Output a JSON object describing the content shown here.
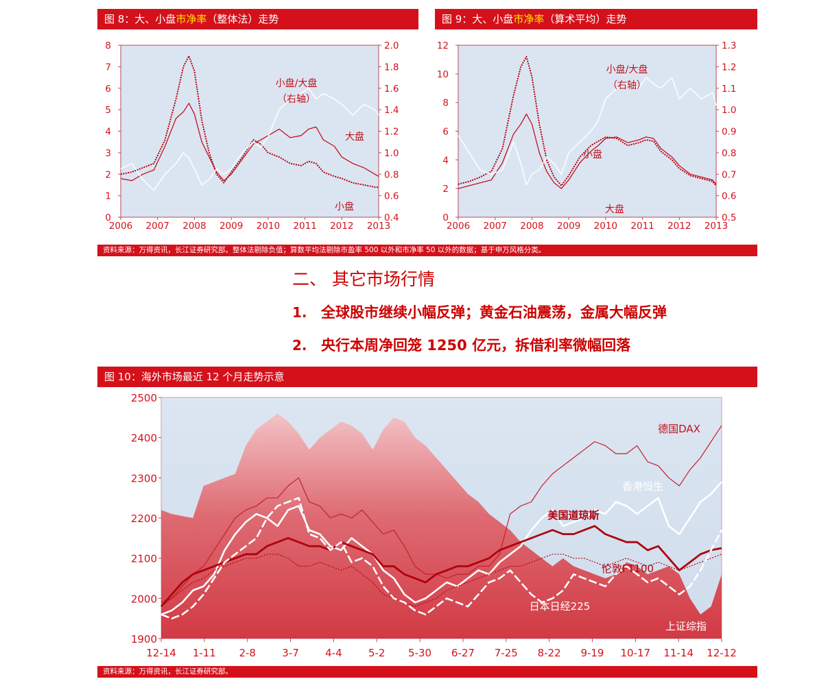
{
  "fig8": {
    "title_pre": "图 8：大、小盘",
    "title_hl": "市净率",
    "title_post": "（整体法）走势"
  },
  "fig9": {
    "title_pre": "图 9：大、小盘",
    "title_hl": "市净率",
    "title_post": "（算术平均）走势"
  },
  "source_top": "资料来源：万得资讯，长江证券研究部。整体法剔除负值；算数平均法剔除市盈率 500 以外和市净率 50 以外的数据；基于申万风格分类。",
  "section": {
    "heading": "二、 其它市场行情",
    "item1_num": "1.",
    "item1_text": "全球股市继续小幅反弹；黄金石油震荡，金属大幅反弹",
    "item2_num": "2.",
    "item2_text": "央行本周净回笼 1250 亿元，拆借利率微幅回落"
  },
  "fig10": {
    "title": "图 10：海外市场最近 12 个月走势示意"
  },
  "source_bottom": "资料来源：万得资讯，长江证券研究部。",
  "colors": {
    "brand_red": "#d4111b",
    "highlight_yellow": "#ffe600",
    "plot_bg": "#dbe5f1",
    "line_dark_red": "#c0000c",
    "line_mid_red": "#d9383f",
    "line_white": "#ffffff"
  },
  "chart_data": [
    {
      "id": "fig8",
      "type": "line",
      "title": "图 8：大、小盘市净率（整体法）走势",
      "x_ticks": [
        "2006",
        "2007",
        "2008",
        "2009",
        "2010",
        "2011",
        "2012",
        "2013"
      ],
      "xlim": [
        2006,
        2013
      ],
      "y_left_ticks": [
        "0",
        "1",
        "2",
        "3",
        "4",
        "5",
        "6",
        "7",
        "8"
      ],
      "ylim_left": [
        0,
        8
      ],
      "y_right_ticks": [
        "0.4",
        "0.6",
        "0.8",
        "1.0",
        "1.2",
        "1.4",
        "1.6",
        "1.8",
        "2.0"
      ],
      "ylim_right": [
        0.4,
        2.0
      ],
      "annotations": [
        "小盘/大盘",
        "（右轴）",
        "大盘",
        "小盘"
      ],
      "series": [
        {
          "name": "大盘",
          "axis": "left",
          "style": "solid",
          "x": [
            2006.0,
            2006.3,
            2006.6,
            2006.9,
            2007.2,
            2007.5,
            2007.7,
            2007.85,
            2008.0,
            2008.2,
            2008.4,
            2008.6,
            2008.8,
            2009.0,
            2009.3,
            2009.6,
            2009.8,
            2010.0,
            2010.3,
            2010.6,
            2010.9,
            2011.1,
            2011.3,
            2011.5,
            2011.8,
            2012.0,
            2012.3,
            2012.6,
            2012.9,
            2013.0
          ],
          "y": [
            1.8,
            1.7,
            2.0,
            2.2,
            3.3,
            4.6,
            4.9,
            5.3,
            4.8,
            3.5,
            2.8,
            2.1,
            1.7,
            2.0,
            2.7,
            3.4,
            3.6,
            3.8,
            4.1,
            3.7,
            3.8,
            4.1,
            4.2,
            3.6,
            3.3,
            2.8,
            2.5,
            2.3,
            2.0,
            1.9
          ]
        },
        {
          "name": "小盘",
          "axis": "left",
          "style": "dotted",
          "x": [
            2006.0,
            2006.3,
            2006.6,
            2006.9,
            2007.2,
            2007.5,
            2007.7,
            2007.85,
            2008.0,
            2008.2,
            2008.4,
            2008.6,
            2008.8,
            2009.0,
            2009.3,
            2009.6,
            2009.8,
            2010.0,
            2010.3,
            2010.6,
            2010.9,
            2011.1,
            2011.3,
            2011.5,
            2011.8,
            2012.0,
            2012.3,
            2012.6,
            2012.9,
            2013.0
          ],
          "y": [
            2.0,
            2.1,
            2.3,
            2.5,
            3.6,
            5.5,
            7.0,
            7.5,
            6.8,
            4.5,
            3.0,
            2.0,
            1.6,
            2.1,
            2.8,
            3.6,
            3.4,
            3.0,
            2.8,
            2.5,
            2.4,
            2.6,
            2.5,
            2.1,
            1.9,
            1.8,
            1.6,
            1.5,
            1.4,
            1.4
          ]
        },
        {
          "name": "小盘/大盘",
          "axis": "right",
          "style": "solid",
          "x": [
            2006.0,
            2006.3,
            2006.6,
            2006.9,
            2007.2,
            2007.5,
            2007.7,
            2007.85,
            2008.0,
            2008.2,
            2008.4,
            2008.6,
            2008.8,
            2009.0,
            2009.3,
            2009.6,
            2009.8,
            2010.0,
            2010.3,
            2010.6,
            2010.9,
            2011.1,
            2011.3,
            2011.5,
            2011.8,
            2012.0,
            2012.3,
            2012.6,
            2012.9,
            2013.0
          ],
          "y": [
            0.85,
            0.9,
            0.75,
            0.65,
            0.8,
            0.9,
            1.0,
            0.95,
            0.85,
            0.7,
            0.75,
            0.85,
            0.8,
            0.85,
            1.0,
            1.1,
            1.05,
            1.15,
            1.4,
            1.5,
            1.55,
            1.6,
            1.5,
            1.55,
            1.5,
            1.45,
            1.35,
            1.45,
            1.4,
            1.35
          ]
        }
      ]
    },
    {
      "id": "fig9",
      "type": "line",
      "title": "图 9：大、小盘市净率（算术平均）走势",
      "x_ticks": [
        "2006",
        "2007",
        "2008",
        "2009",
        "2010",
        "2011",
        "2012",
        "2013"
      ],
      "xlim": [
        2006,
        2013
      ],
      "y_left_ticks": [
        "0",
        "2",
        "4",
        "6",
        "8",
        "10",
        "12"
      ],
      "ylim_left": [
        0,
        12
      ],
      "y_right_ticks": [
        "0.5",
        "0.6",
        "0.7",
        "0.8",
        "0.9",
        "1.0",
        "1.1",
        "1.2",
        "1.3"
      ],
      "ylim_right": [
        0.5,
        1.3
      ],
      "annotations": [
        "小盘/大盘",
        "（右轴）",
        "小盘",
        "大盘"
      ],
      "series": [
        {
          "name": "大盘",
          "axis": "left",
          "style": "solid",
          "x": [
            2006.0,
            2006.3,
            2006.6,
            2006.9,
            2007.2,
            2007.5,
            2007.7,
            2007.85,
            2008.0,
            2008.2,
            2008.4,
            2008.6,
            2008.8,
            2009.0,
            2009.3,
            2009.6,
            2009.8,
            2010.0,
            2010.3,
            2010.6,
            2010.9,
            2011.1,
            2011.3,
            2011.5,
            2011.8,
            2012.0,
            2012.3,
            2012.6,
            2012.9,
            2013.0
          ],
          "y": [
            2.0,
            2.2,
            2.4,
            2.6,
            3.8,
            5.8,
            6.5,
            7.2,
            6.5,
            4.5,
            3.2,
            2.4,
            2.0,
            2.6,
            3.8,
            4.6,
            5.0,
            5.5,
            5.6,
            5.2,
            5.4,
            5.6,
            5.5,
            4.8,
            4.2,
            3.6,
            3.0,
            2.8,
            2.6,
            2.3
          ]
        },
        {
          "name": "小盘",
          "axis": "left",
          "style": "dotted",
          "x": [
            2006.0,
            2006.3,
            2006.6,
            2006.9,
            2007.2,
            2007.5,
            2007.7,
            2007.85,
            2008.0,
            2008.2,
            2008.4,
            2008.6,
            2008.8,
            2009.0,
            2009.3,
            2009.6,
            2009.8,
            2010.0,
            2010.3,
            2010.6,
            2010.9,
            2011.1,
            2011.3,
            2011.5,
            2011.8,
            2012.0,
            2012.3,
            2012.6,
            2012.9,
            2013.0
          ],
          "y": [
            2.3,
            2.5,
            2.8,
            3.2,
            4.8,
            8.5,
            10.5,
            11.2,
            9.8,
            6.5,
            4.0,
            2.8,
            2.2,
            2.9,
            4.2,
            5.0,
            5.3,
            5.6,
            5.5,
            5.0,
            5.2,
            5.4,
            5.3,
            4.6,
            4.0,
            3.4,
            2.9,
            2.7,
            2.5,
            2.2
          ]
        },
        {
          "name": "小盘/大盘",
          "axis": "right",
          "style": "solid",
          "x": [
            2006.0,
            2006.3,
            2006.6,
            2006.9,
            2007.2,
            2007.5,
            2007.7,
            2007.85,
            2008.0,
            2008.2,
            2008.4,
            2008.6,
            2008.8,
            2009.0,
            2009.3,
            2009.6,
            2009.8,
            2010.0,
            2010.3,
            2010.6,
            2010.9,
            2011.1,
            2011.3,
            2011.5,
            2011.8,
            2012.0,
            2012.3,
            2012.6,
            2012.9,
            2013.0
          ],
          "y": [
            0.88,
            0.8,
            0.72,
            0.7,
            0.72,
            0.85,
            0.75,
            0.65,
            0.7,
            0.72,
            0.78,
            0.75,
            0.7,
            0.8,
            0.85,
            0.9,
            0.95,
            1.05,
            1.1,
            1.12,
            1.1,
            1.15,
            1.12,
            1.1,
            1.15,
            1.05,
            1.1,
            1.05,
            1.08,
            1.02
          ]
        }
      ]
    },
    {
      "id": "fig10",
      "type": "line",
      "title": "图 10：海外市场最近 12 个月走势示意",
      "x_ticks": [
        "12-14",
        "1-11",
        "2-8",
        "3-7",
        "4-4",
        "5-2",
        "5-30",
        "6-27",
        "7-25",
        "8-22",
        "9-19",
        "10-17",
        "11-14",
        "12-12"
      ],
      "y_ticks": [
        "1900",
        "2000",
        "2100",
        "2200",
        "2300",
        "2400",
        "2500"
      ],
      "ylim": [
        1900,
        2500
      ],
      "annotations": [
        "德国DAX",
        "香港恒生",
        "美国道琼斯",
        "伦敦FT100",
        "日本日经225",
        "上证综指"
      ],
      "series": [
        {
          "name": "上证综指",
          "style": "area",
          "values": [
            2220,
            2210,
            2205,
            2200,
            2280,
            2290,
            2300,
            2310,
            2380,
            2420,
            2440,
            2460,
            2440,
            2410,
            2370,
            2400,
            2420,
            2440,
            2430,
            2410,
            2370,
            2420,
            2450,
            2440,
            2400,
            2380,
            2350,
            2320,
            2290,
            2260,
            2240,
            2210,
            2190,
            2170,
            2140,
            2120,
            2100,
            2080,
            2100,
            2080,
            2070,
            2060,
            2050,
            2060,
            2090,
            2080,
            2060,
            2070,
            2080,
            2060,
            2000,
            1960,
            1980,
            2060
          ]
        },
        {
          "name": "德国DAX",
          "style": "thin",
          "values": [
            1980,
            2000,
            2030,
            2060,
            2080,
            2120,
            2160,
            2200,
            2220,
            2230,
            2250,
            2250,
            2280,
            2300,
            2240,
            2230,
            2200,
            2210,
            2200,
            2220,
            2190,
            2160,
            2170,
            2130,
            2080,
            2060,
            2060,
            2050,
            2060,
            2060,
            2080,
            2080,
            2110,
            2210,
            2230,
            2240,
            2280,
            2310,
            2330,
            2350,
            2370,
            2390,
            2380,
            2360,
            2360,
            2380,
            2340,
            2330,
            2300,
            2280,
            2320,
            2350,
            2390,
            2430
          ]
        },
        {
          "name": "香港恒生",
          "style": "white",
          "values": [
            1960,
            1970,
            1990,
            2020,
            2030,
            2060,
            2120,
            2160,
            2190,
            2210,
            2200,
            2180,
            2220,
            2230,
            2170,
            2160,
            2130,
            2120,
            2150,
            2130,
            2110,
            2070,
            2050,
            2010,
            1990,
            2000,
            2020,
            2040,
            2030,
            2050,
            2070,
            2060,
            2090,
            2110,
            2130,
            2170,
            2200,
            2220,
            2180,
            2190,
            2200,
            2220,
            2210,
            2240,
            2230,
            2210,
            2230,
            2250,
            2180,
            2160,
            2200,
            2240,
            2260,
            2290
          ]
        },
        {
          "name": "美国道琼斯",
          "style": "thick",
          "values": [
            1980,
            2010,
            2040,
            2060,
            2070,
            2080,
            2090,
            2100,
            2110,
            2110,
            2130,
            2140,
            2150,
            2140,
            2130,
            2130,
            2120,
            2140,
            2130,
            2120,
            2110,
            2080,
            2080,
            2060,
            2050,
            2040,
            2060,
            2070,
            2080,
            2080,
            2090,
            2100,
            2120,
            2130,
            2140,
            2150,
            2160,
            2170,
            2160,
            2160,
            2170,
            2180,
            2160,
            2150,
            2140,
            2140,
            2120,
            2130,
            2100,
            2070,
            2090,
            2110,
            2120,
            2125
          ]
        },
        {
          "name": "伦敦FT100",
          "style": "dotted",
          "values": [
            1990,
            2000,
            2020,
            2040,
            2050,
            2070,
            2080,
            2090,
            2100,
            2100,
            2110,
            2110,
            2100,
            2080,
            2080,
            2090,
            2080,
            2070,
            2080,
            2060,
            2040,
            2010,
            2000,
            1990,
            1980,
            1990,
            2000,
            2020,
            2030,
            2040,
            2050,
            2060,
            2070,
            2080,
            2080,
            2090,
            2100,
            2110,
            2110,
            2100,
            2100,
            2090,
            2080,
            2090,
            2100,
            2090,
            2080,
            2090,
            2080,
            2070,
            2080,
            2090,
            2100,
            2110
          ]
        },
        {
          "name": "日本日经225",
          "style": "white-dashed",
          "values": [
            1960,
            1950,
            1960,
            1980,
            2010,
            2050,
            2090,
            2110,
            2130,
            2150,
            2200,
            2230,
            2240,
            2250,
            2160,
            2150,
            2120,
            2140,
            2090,
            2100,
            2080,
            2030,
            2000,
            1990,
            1970,
            1960,
            1980,
            2000,
            1990,
            1980,
            2010,
            2040,
            2050,
            2070,
            2040,
            2010,
            1990,
            2000,
            2020,
            2060,
            2050,
            2040,
            2030,
            2060,
            2080,
            2060,
            2040,
            2050,
            2030,
            2010,
            2030,
            2070,
            2120,
            2170
          ]
        }
      ]
    }
  ]
}
